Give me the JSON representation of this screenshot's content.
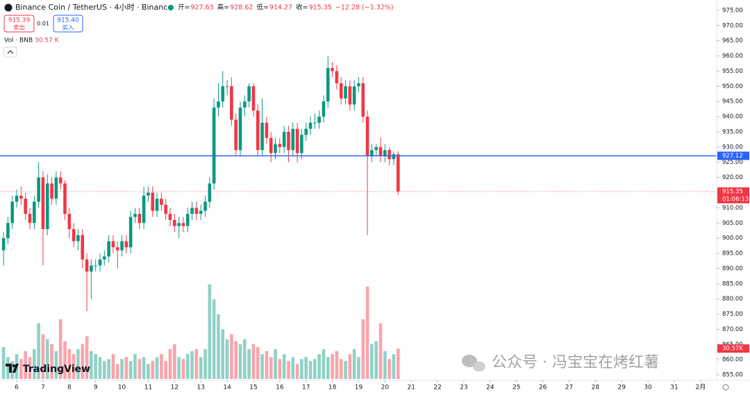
{
  "header": {
    "title": "Binance Coin / TetherUS · 4小时 · Binance",
    "ohlc_labels": [
      "开=",
      "高=",
      "低=",
      "收="
    ],
    "change": "−12.28 (−1.32%)",
    "sell_price": "915.39",
    "sell_label": "卖出",
    "spread": "0.01",
    "buy_price": "915.40",
    "buy_label": "买入",
    "logo": "TradingView",
    "watermark": "公众号 · 冯宝宝在烤红薯"
  },
  "chart_data": {
    "type": "candlestick",
    "x": [
      5.5,
      5.667,
      5.833,
      6,
      6.167,
      6.333,
      6.5,
      6.667,
      6.833,
      7,
      7.167,
      7.333,
      7.5,
      7.667,
      7.833,
      8,
      8.167,
      8.333,
      8.5,
      8.667,
      8.833,
      9,
      9.167,
      9.333,
      9.5,
      9.667,
      9.833,
      10,
      10.167,
      10.333,
      10.5,
      10.667,
      10.833,
      11,
      11.167,
      11.333,
      11.5,
      11.667,
      11.833,
      12,
      12.167,
      12.333,
      12.5,
      12.667,
      12.833,
      13,
      13.167,
      13.333,
      13.5,
      13.667,
      13.833,
      14,
      14.167,
      14.333,
      14.5,
      14.667,
      14.833,
      15,
      15.167,
      15.333,
      15.5,
      15.667,
      15.833,
      16,
      16.167,
      16.333,
      16.5,
      16.667,
      16.833,
      17,
      17.167,
      17.333,
      17.5,
      17.667,
      17.833,
      18,
      18.167,
      18.333,
      18.5,
      18.667,
      18.833,
      19,
      19.167,
      19.333,
      19.5,
      19.667,
      19.833,
      20,
      20.167,
      20.333,
      20.5
    ],
    "open": [
      896,
      900,
      905,
      912,
      914,
      913,
      908,
      905,
      912,
      920,
      903,
      918,
      913,
      920,
      918,
      908,
      903,
      899,
      901,
      893,
      889,
      891,
      891,
      893,
      894,
      899,
      897,
      896,
      899,
      897,
      907,
      908,
      905,
      914,
      915,
      909,
      913,
      911,
      908,
      906,
      904,
      905,
      904,
      908,
      910,
      908,
      909,
      912,
      918,
      943,
      945,
      950,
      950,
      939,
      929,
      943,
      945,
      950,
      942,
      929,
      938,
      933,
      928,
      931,
      930,
      935,
      929,
      936,
      928,
      934,
      936,
      938,
      938,
      940,
      945,
      956,
      955,
      951,
      946,
      950,
      944,
      950,
      951,
      940,
      927,
      929,
      930,
      927,
      929,
      926,
      927.63
    ],
    "high": [
      902,
      907,
      914,
      916,
      917,
      915,
      910,
      914,
      925,
      922,
      921,
      920,
      922,
      922,
      919,
      910,
      905,
      903,
      903,
      895,
      893,
      893,
      895,
      896,
      901,
      901,
      899,
      901,
      901,
      909,
      910,
      910,
      917,
      917,
      917,
      915,
      915,
      913,
      910,
      908,
      907,
      907,
      910,
      912,
      912,
      911,
      914,
      920,
      946,
      951,
      955,
      952,
      953,
      941,
      945,
      947,
      951,
      951,
      944,
      946,
      940,
      935,
      933,
      933,
      937,
      937,
      938,
      938,
      936,
      938,
      940,
      941,
      942,
      947,
      960,
      958,
      957,
      953,
      952,
      952,
      952,
      953,
      953,
      942,
      931,
      931,
      933,
      931,
      930,
      928.5,
      928.62
    ],
    "low": [
      891,
      898,
      903,
      910,
      911,
      906,
      903,
      903,
      910,
      891,
      901,
      911,
      911,
      916,
      906,
      900,
      897,
      896,
      890,
      876,
      880,
      889,
      889,
      891,
      892,
      895,
      890,
      894,
      895,
      895,
      905,
      903,
      903,
      912,
      907,
      907,
      909,
      906,
      904,
      902,
      900,
      902,
      902,
      906,
      906,
      906,
      907,
      910,
      916,
      940,
      943,
      947,
      937,
      927,
      927,
      940,
      943,
      940,
      927,
      927,
      931,
      925,
      926,
      928,
      928,
      925,
      927,
      925,
      926,
      932,
      934,
      936,
      936,
      938,
      943,
      953,
      949,
      944,
      944,
      942,
      942,
      948,
      938,
      901,
      925,
      927,
      925,
      925,
      924,
      924,
      914.27
    ],
    "close": [
      900,
      905,
      912,
      914,
      913,
      908,
      905,
      912,
      920,
      903,
      918,
      913,
      920,
      918,
      908,
      903,
      899,
      901,
      893,
      889,
      891,
      891,
      893,
      894,
      899,
      897,
      896,
      899,
      897,
      907,
      908,
      905,
      914,
      915,
      909,
      913,
      911,
      908,
      906,
      904,
      905,
      904,
      908,
      910,
      908,
      909,
      912,
      918,
      943,
      945,
      950,
      950,
      939,
      929,
      943,
      945,
      950,
      942,
      929,
      938,
      933,
      928,
      931,
      930,
      935,
      929,
      936,
      928,
      934,
      936,
      938,
      938,
      940,
      945,
      956,
      955,
      951,
      946,
      950,
      944,
      950,
      951,
      940,
      927,
      929,
      930,
      927,
      929,
      926,
      927.63,
      915.35
    ],
    "up_color": "#089981",
    "down_color": "#f23645",
    "volume": {
      "name": "Vol · BNB",
      "header_value": "30.57 K",
      "values": [
        32,
        22,
        18,
        25,
        20,
        28,
        22,
        30,
        56,
        45,
        40,
        35,
        28,
        60,
        38,
        30,
        25,
        30,
        35,
        43,
        28,
        25,
        22,
        18,
        20,
        25,
        15,
        20,
        22,
        18,
        25,
        20,
        22,
        15,
        18,
        22,
        25,
        18,
        30,
        35,
        22,
        20,
        25,
        28,
        30,
        22,
        30,
        95,
        80,
        65,
        50,
        40,
        45,
        38,
        35,
        40,
        30,
        35,
        32,
        25,
        28,
        22,
        30,
        20,
        25,
        18,
        22,
        15,
        20,
        22,
        18,
        20,
        25,
        30,
        22,
        25,
        28,
        20,
        18,
        25,
        30,
        22,
        60,
        93,
        35,
        38,
        56,
        28,
        20,
        25,
        30.57
      ],
      "value_labels": [
        null,
        null,
        null,
        null,
        null,
        null,
        null,
        null,
        null,
        null,
        null,
        null,
        null,
        null,
        null,
        null,
        null,
        null,
        null,
        null,
        null,
        null,
        null,
        null,
        null,
        null,
        null,
        null,
        null,
        null,
        null,
        null,
        null,
        null,
        null,
        null,
        null,
        null,
        null,
        null,
        null,
        null,
        null,
        null,
        null,
        null,
        null,
        null,
        null,
        null,
        null,
        null,
        null,
        null,
        null,
        null,
        null,
        null,
        null,
        null,
        null,
        null,
        null,
        null,
        null,
        null,
        null,
        null,
        null,
        null,
        null,
        null,
        null,
        null,
        null,
        null,
        null,
        null,
        null,
        null,
        null,
        null,
        null,
        null,
        null,
        null,
        null,
        null,
        null,
        null,
        "30.57K"
      ]
    },
    "vlim": [
      0,
      120
    ],
    "price_line": {
      "value": 927.12,
      "color": "#2962ff"
    },
    "countdown": "01:06:13",
    "xlim": [
      5.365,
      32.61
    ],
    "xticks": [
      6,
      7,
      8,
      9,
      10,
      11,
      12,
      13,
      14,
      15,
      16,
      17,
      18,
      19,
      20,
      21,
      22,
      23,
      24,
      25,
      26,
      27,
      28,
      29,
      30,
      31,
      {
        "value": 32,
        "label": "2月"
      }
    ],
    "ylim": [
      853.2,
      978.4
    ],
    "yticks": [
      {
        "value": 975,
        "label": "975.00"
      },
      {
        "value": 970,
        "label": "970.00"
      },
      {
        "value": 965,
        "label": "965.00"
      },
      {
        "value": 960,
        "label": "960.00"
      },
      {
        "value": 955,
        "label": "955.00"
      },
      {
        "value": 950,
        "label": "950.00"
      },
      {
        "value": 945,
        "label": "945.00"
      },
      {
        "value": 940,
        "label": "940.00"
      },
      {
        "value": 935,
        "label": "935.00"
      },
      {
        "value": 930,
        "label": "930.00"
      },
      {
        "value": 925,
        "label": "925.00"
      },
      {
        "value": 920,
        "label": "920.00"
      },
      {
        "value": 915,
        "label": "915.00"
      },
      {
        "value": 910,
        "label": "910.00"
      },
      {
        "value": 905,
        "label": "905.00"
      },
      {
        "value": 900,
        "label": "900.00"
      },
      {
        "value": 895,
        "label": "895.00"
      },
      {
        "value": 890,
        "label": "890.00"
      },
      {
        "value": 885,
        "label": "885.00"
      },
      {
        "value": 880,
        "label": "880.00"
      },
      {
        "value": 875,
        "label": "875.00"
      },
      {
        "value": 870,
        "label": "870.00"
      },
      {
        "value": 865,
        "label": "865.00"
      },
      {
        "value": 860,
        "label": "860.00"
      },
      {
        "value": 855,
        "label": "855.00"
      }
    ]
  }
}
